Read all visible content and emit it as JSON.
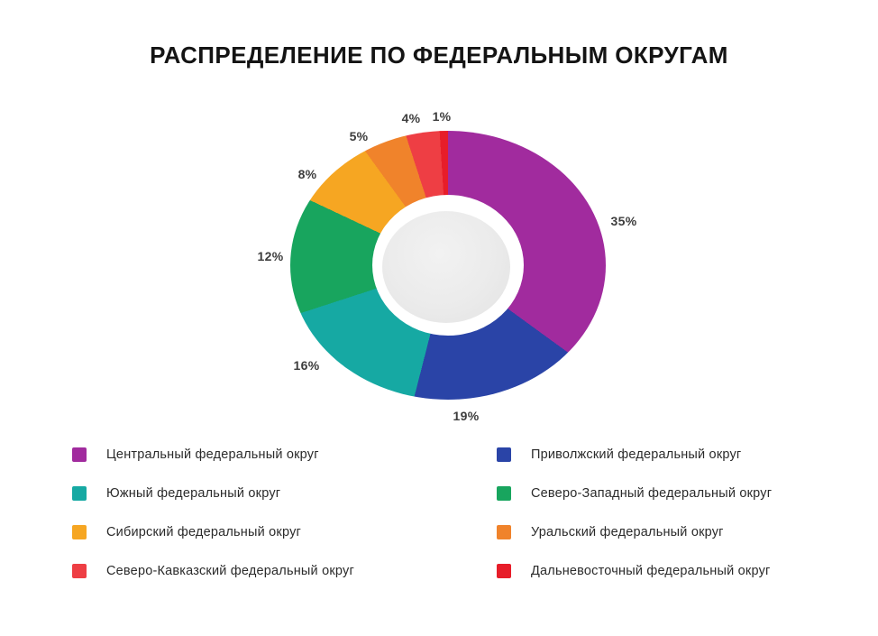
{
  "title": "РАСПРЕДЕЛЕНИЕ ПО ФЕДЕРАЛЬНЫМ ОКРУГАМ",
  "chart_data": {
    "type": "pie",
    "variant": "donut",
    "title": "РАСПРЕДЕЛЕНИЕ ПО ФЕДЕРАЛЬНЫМ ОКРУГАМ",
    "unit": "%",
    "start_angle_deg": 0,
    "direction": "clockwise",
    "legend_position": "bottom-two-columns",
    "slices": [
      {
        "label": "Центральный федеральный округ",
        "value": 35,
        "pct_label": "35%",
        "color": "#A12B9E"
      },
      {
        "label": "Приволжский федеральный округ",
        "value": 19,
        "pct_label": "19%",
        "color": "#2A44A7"
      },
      {
        "label": "Южный федеральный округ",
        "value": 16,
        "pct_label": "16%",
        "color": "#16A9A3"
      },
      {
        "label": "Северо-Западный федеральный округ",
        "value": 12,
        "pct_label": "12%",
        "color": "#18A55E"
      },
      {
        "label": "Сибирский федеральный округ",
        "value": 8,
        "pct_label": "8%",
        "color": "#F6A622"
      },
      {
        "label": "Уральский федеральный округ",
        "value": 5,
        "pct_label": "5%",
        "color": "#F0832B"
      },
      {
        "label": "Северо-Кавказский федеральный округ",
        "value": 4,
        "pct_label": "4%",
        "color": "#EE3E44"
      },
      {
        "label": "Дальневосточный федеральный округ",
        "value": 1,
        "pct_label": "1%",
        "color": "#E71D29"
      }
    ],
    "legend_columns": {
      "left_slice_indices": [
        0,
        2,
        4,
        6
      ],
      "right_slice_indices": [
        1,
        3,
        5,
        7
      ]
    }
  }
}
